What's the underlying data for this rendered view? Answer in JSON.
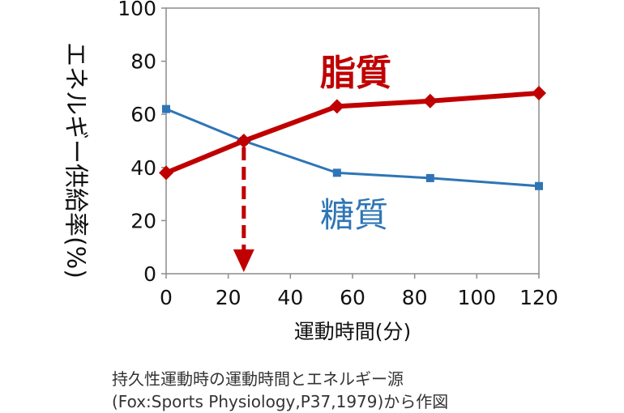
{
  "chart_data": {
    "type": "line",
    "x": [
      0,
      25,
      55,
      85,
      120
    ],
    "xlim": [
      0,
      120
    ],
    "ylim": [
      0,
      100
    ],
    "xticks": [
      "0",
      "20",
      "40",
      "60",
      "80",
      "100",
      "120"
    ],
    "yticks": [
      "0",
      "20",
      "40",
      "60",
      "80",
      "100"
    ],
    "xlabel": "運動時間(分)",
    "ylabel": "エネルギー供給率(%)",
    "series": [
      {
        "name": "脂質",
        "color": "#c00000",
        "marker": "diamond",
        "values": [
          38,
          50,
          63,
          65,
          68
        ]
      },
      {
        "name": "糖質",
        "color": "#2e75b6",
        "marker": "square",
        "values": [
          62,
          50,
          38,
          36,
          33
        ]
      }
    ],
    "crossover_arrow": {
      "x": 25,
      "from_y": 50,
      "to_y": 0,
      "color": "#c00000"
    },
    "grid": false
  },
  "caption": {
    "line1": "持久性運動時の運動時間とエネルギー源",
    "line2": "(Fox:Sports Physiology,P37,1979)から作図"
  }
}
